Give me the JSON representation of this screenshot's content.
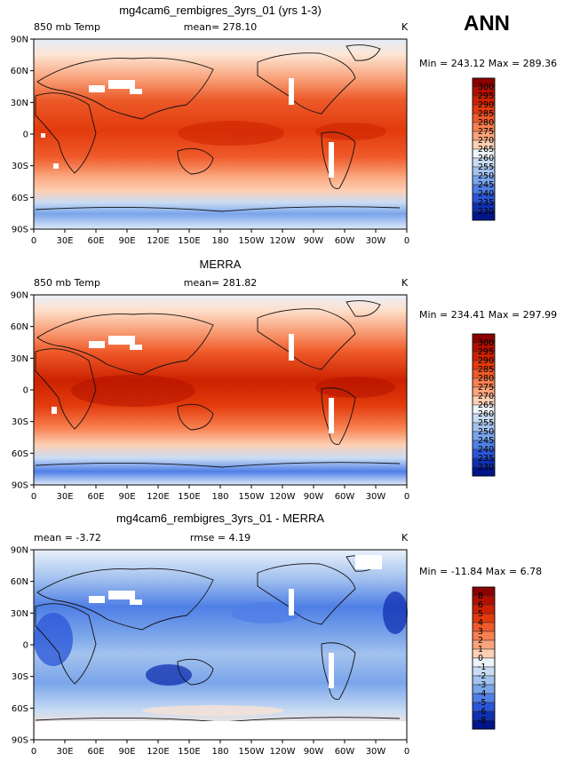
{
  "season": "ANN",
  "chart_data": [
    {
      "type": "heatmap",
      "title": "mg4cam6_rembigres_3yrs_01 (yrs 1-3)",
      "variable": "850 mb Temp",
      "mean_label": "mean= 278.10",
      "units": "K",
      "min_max": "Min = 243.12 Max = 289.36",
      "min": 243.12,
      "max": 289.36,
      "mean": 278.1,
      "x_ticks": [
        "0",
        "30E",
        "60E",
        "90E",
        "120E",
        "150E",
        "180",
        "150W",
        "120W",
        "90W",
        "60W",
        "30W",
        "0"
      ],
      "y_ticks": [
        "90N",
        "60N",
        "30N",
        "0",
        "30S",
        "60S",
        "90S"
      ],
      "levels": [
        "300",
        "295",
        "290",
        "285",
        "280",
        "275",
        "270",
        "265",
        "260",
        "255",
        "250",
        "245",
        "240",
        "235",
        "230"
      ],
      "colors": [
        "#8b0000",
        "#b01000",
        "#cc2200",
        "#e23a0c",
        "#ef5a2a",
        "#f88050",
        "#fba47c",
        "#fdd0b4",
        "#eef4fb",
        "#c9dcf4",
        "#a3c2ee",
        "#7aa5ea",
        "#4f7fe6",
        "#2a55d8",
        "#1030b0",
        "#00158a"
      ]
    },
    {
      "type": "heatmap",
      "title": "MERRA",
      "variable": "850 mb Temp",
      "mean_label": "mean= 281.82",
      "units": "K",
      "min_max": "Min = 234.41 Max = 297.99",
      "min": 234.41,
      "max": 297.99,
      "mean": 281.82,
      "x_ticks": [
        "0",
        "30E",
        "60E",
        "90E",
        "120E",
        "150E",
        "180",
        "150W",
        "120W",
        "90W",
        "60W",
        "30W",
        "0"
      ],
      "y_ticks": [
        "90N",
        "60N",
        "30N",
        "0",
        "30S",
        "60S",
        "90S"
      ],
      "levels": [
        "300",
        "295",
        "290",
        "285",
        "280",
        "275",
        "270",
        "265",
        "260",
        "255",
        "250",
        "245",
        "240",
        "235",
        "230"
      ],
      "colors": [
        "#8b0000",
        "#b01000",
        "#cc2200",
        "#e23a0c",
        "#ef5a2a",
        "#f88050",
        "#fba47c",
        "#fdd0b4",
        "#eef4fb",
        "#c9dcf4",
        "#a3c2ee",
        "#7aa5ea",
        "#4f7fe6",
        "#2a55d8",
        "#1030b0",
        "#00158a"
      ]
    },
    {
      "type": "heatmap",
      "title": "mg4cam6_rembigres_3yrs_01 - MERRA",
      "variable": "mean =  -3.72",
      "mean_label": "rmse =   4.19",
      "units": "K",
      "min_max": "Min = -11.84 Max =    6.78",
      "min": -11.84,
      "max": 6.78,
      "mean": -3.72,
      "rmse": 4.19,
      "x_ticks": [
        "0",
        "30E",
        "60E",
        "90E",
        "120E",
        "150E",
        "180",
        "150W",
        "120W",
        "90W",
        "60W",
        "30W",
        "0"
      ],
      "y_ticks": [
        "90N",
        "60N",
        "30N",
        "0",
        "30S",
        "60S",
        "90S"
      ],
      "levels": [
        "8",
        "6",
        "5",
        "4",
        "3",
        "2",
        "1",
        "0",
        "-1",
        "-2",
        "-3",
        "-4",
        "-5",
        "-6",
        "-8"
      ],
      "colors": [
        "#8b0000",
        "#b01000",
        "#cc2200",
        "#e23a0c",
        "#ef5a2a",
        "#f88050",
        "#fba47c",
        "#fdd0b4",
        "#eef4fb",
        "#c9dcf4",
        "#a3c2ee",
        "#7aa5ea",
        "#4f7fe6",
        "#2a55d8",
        "#1030b0",
        "#00158a"
      ]
    }
  ]
}
